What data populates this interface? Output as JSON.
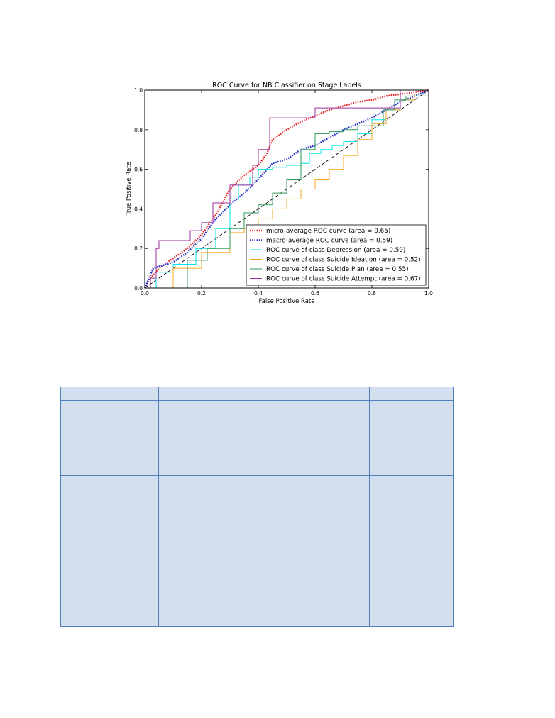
{
  "chart_data": {
    "type": "line",
    "title": "ROC Curve for NB Classifier on Stage Labels",
    "xlabel": "False Positive Rate",
    "ylabel": "True Positive Rate",
    "xlim": [
      0.0,
      1.0
    ],
    "ylim": [
      0.0,
      1.0
    ],
    "xticks": [
      "0.0",
      "0.2",
      "0.4",
      "0.6",
      "0.8",
      "1.0"
    ],
    "yticks": [
      "0.0",
      "0.2",
      "0.4",
      "0.6",
      "0.8",
      "1.0"
    ],
    "legend_position": "lower-right",
    "diagonal": {
      "x": [
        0,
        1
      ],
      "y": [
        0,
        1
      ],
      "color": "#000000",
      "style": "dashed"
    },
    "series": [
      {
        "name": "micro-average ROC curve (area = 0.65)",
        "color": "#e8232a",
        "style": "dotted",
        "step": false,
        "x": [
          0,
          0.02,
          0.05,
          0.1,
          0.15,
          0.2,
          0.25,
          0.3,
          0.35,
          0.4,
          0.43,
          0.45,
          0.5,
          0.55,
          0.6,
          0.65,
          0.7,
          0.75,
          0.8,
          0.85,
          0.9,
          0.95,
          1.0
        ],
        "y": [
          0,
          0.05,
          0.1,
          0.15,
          0.2,
          0.27,
          0.37,
          0.5,
          0.57,
          0.62,
          0.68,
          0.75,
          0.8,
          0.84,
          0.87,
          0.9,
          0.92,
          0.94,
          0.95,
          0.97,
          0.98,
          0.99,
          1.0
        ]
      },
      {
        "name": "macro-average ROC curve (area = 0.59)",
        "color": "#2233cc",
        "style": "dotted",
        "step": false,
        "x": [
          0,
          0.03,
          0.1,
          0.15,
          0.2,
          0.25,
          0.3,
          0.35,
          0.4,
          0.45,
          0.5,
          0.55,
          0.6,
          0.65,
          0.7,
          0.75,
          0.8,
          0.85,
          0.9,
          0.95,
          1.0
        ],
        "y": [
          0,
          0.1,
          0.13,
          0.18,
          0.25,
          0.35,
          0.42,
          0.48,
          0.55,
          0.63,
          0.65,
          0.7,
          0.72,
          0.76,
          0.8,
          0.83,
          0.86,
          0.9,
          0.94,
          0.97,
          1.0
        ]
      },
      {
        "name": "ROC curve of class Depression (area = 0.59)",
        "color": "#00e6e6",
        "style": "solid",
        "step": true,
        "x": [
          0,
          0.04,
          0.1,
          0.18,
          0.25,
          0.3,
          0.33,
          0.37,
          0.4,
          0.45,
          0.5,
          0.55,
          0.58,
          0.62,
          0.66,
          0.7,
          0.75,
          0.8,
          0.85,
          0.9,
          0.95,
          1.0
        ],
        "y": [
          0,
          0.08,
          0.12,
          0.2,
          0.3,
          0.45,
          0.52,
          0.56,
          0.6,
          0.61,
          0.62,
          0.63,
          0.68,
          0.7,
          0.72,
          0.74,
          0.78,
          0.85,
          0.9,
          0.95,
          0.98,
          1.0
        ]
      },
      {
        "name": "ROC curve of class Suicide Ideation (area = 0.52)",
        "color": "#f5a623",
        "style": "solid",
        "step": true,
        "x": [
          0,
          0.1,
          0.2,
          0.3,
          0.35,
          0.4,
          0.45,
          0.5,
          0.55,
          0.6,
          0.65,
          0.7,
          0.75,
          0.8,
          0.85,
          0.9,
          0.95,
          1.0
        ],
        "y": [
          0,
          0.1,
          0.18,
          0.28,
          0.3,
          0.35,
          0.4,
          0.45,
          0.5,
          0.55,
          0.6,
          0.67,
          0.75,
          0.83,
          0.9,
          0.95,
          0.98,
          1.0
        ]
      },
      {
        "name": "ROC curve of class Suicide Plan (area = 0.55)",
        "color": "#2e9b5b",
        "style": "solid",
        "step": true,
        "x": [
          0,
          0.15,
          0.22,
          0.3,
          0.35,
          0.4,
          0.45,
          0.5,
          0.55,
          0.6,
          0.65,
          0.7,
          0.75,
          0.8,
          0.84,
          0.88,
          0.92,
          1.0
        ],
        "y": [
          0,
          0.14,
          0.2,
          0.3,
          0.38,
          0.42,
          0.48,
          0.55,
          0.7,
          0.78,
          0.79,
          0.8,
          0.82,
          0.82,
          0.9,
          0.95,
          0.97,
          1.0
        ]
      },
      {
        "name": "ROC curve of class Suicide Attempt (area = 0.67)",
        "color": "#9b2d9b",
        "style": "solid",
        "step": true,
        "x": [
          0,
          0.02,
          0.04,
          0.05,
          0.16,
          0.2,
          0.24,
          0.3,
          0.38,
          0.4,
          0.44,
          0.6,
          0.8,
          0.9,
          1.0
        ],
        "y": [
          0,
          0.05,
          0.2,
          0.24,
          0.29,
          0.33,
          0.43,
          0.52,
          0.62,
          0.7,
          0.86,
          0.91,
          0.91,
          1.0,
          1.0
        ]
      }
    ]
  },
  "table": {
    "header": [
      "",
      "",
      ""
    ],
    "rows": [
      [
        "",
        "",
        ""
      ],
      [
        "",
        "",
        ""
      ],
      [
        "",
        "",
        ""
      ]
    ]
  }
}
